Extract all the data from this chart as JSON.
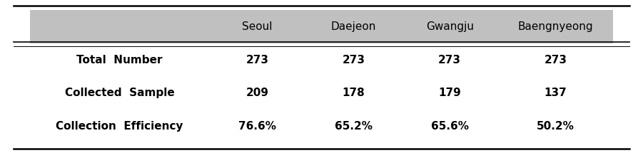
{
  "columns": [
    "",
    "Seoul",
    "Daejeon",
    "Gwangju",
    "Baengnyeong"
  ],
  "rows": [
    [
      "Total  Number",
      "273",
      "273",
      "273",
      "273"
    ],
    [
      "Collected  Sample",
      "209",
      "178",
      "179",
      "137"
    ],
    [
      "Collection  Efficiency",
      "76.6%",
      "65.2%",
      "65.6%",
      "50.2%"
    ]
  ],
  "header_bg_color": "#c0c0c0",
  "table_bg_color": "#ffffff",
  "header_font_size": 11,
  "body_font_size": 11,
  "top_line_color": "#000000",
  "fig_width": 9.01,
  "fig_height": 2.15,
  "dpi": 100
}
